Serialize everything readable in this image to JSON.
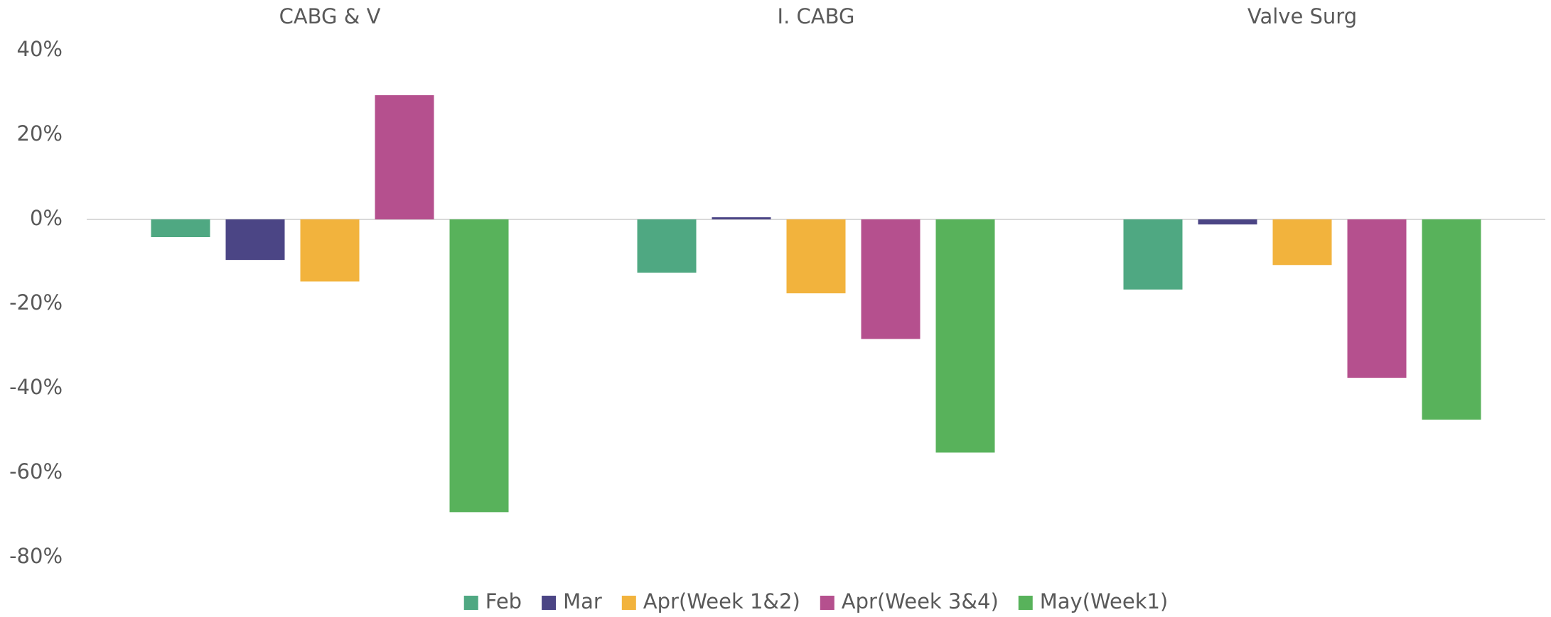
{
  "chart_data": {
    "type": "bar",
    "categories": [
      "CABG & V",
      "I. CABG",
      "Valve Surg"
    ],
    "series": [
      {
        "name": "Feb",
        "color": "#4fa882",
        "values": [
          -4.2,
          -12.6,
          -16.6
        ]
      },
      {
        "name": "Mar",
        "color": "#4b4585",
        "values": [
          -9.6,
          0.5,
          -1.2
        ]
      },
      {
        "name": "Apr(Week 1&2)",
        "color": "#f2b33d",
        "values": [
          -14.7,
          -17.5,
          -10.8
        ]
      },
      {
        "name": "Apr(Week 3&4)",
        "color": "#b5508e",
        "values": [
          29.4,
          -28.3,
          -37.5
        ]
      },
      {
        "name": "May(Week1)",
        "color": "#58b25b",
        "values": [
          -69.3,
          -55.2,
          -47.4
        ]
      }
    ],
    "ylim": [
      -80,
      40
    ],
    "yticks": [
      {
        "value": 40,
        "label": "40%"
      },
      {
        "value": 20,
        "label": "20%"
      },
      {
        "value": 0,
        "label": "0%"
      },
      {
        "value": -20,
        "label": "-20%"
      },
      {
        "value": -40,
        "label": "-40%"
      },
      {
        "value": -60,
        "label": "-60%"
      },
      {
        "value": -80,
        "label": "-80%"
      }
    ],
    "grid": false,
    "legend": "bottom"
  }
}
